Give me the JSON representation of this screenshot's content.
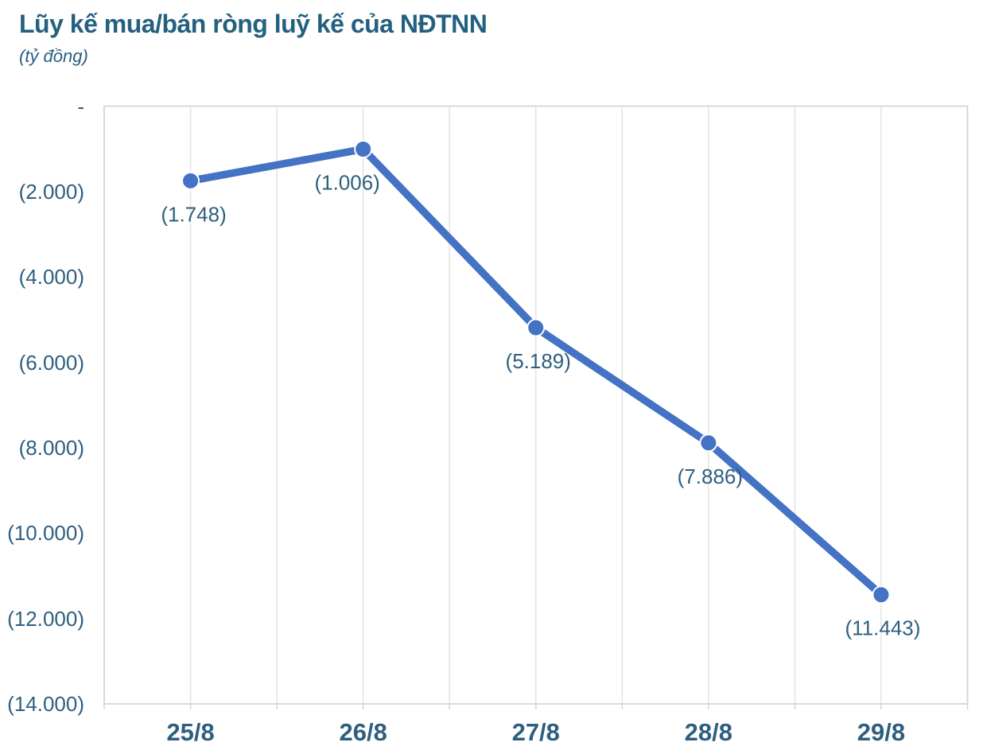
{
  "chart": {
    "title": "Lũy kế mua/bán ròng luỹ kế của NĐTNN",
    "subtitle": "(tỷ đồng)"
  },
  "chart_data": {
    "type": "line",
    "title": "Lũy kế mua/bán ròng luỹ kế của NĐTNN",
    "subtitle_unit": "(tỷ đồng)",
    "categories": [
      "25/8",
      "26/8",
      "27/8",
      "28/8",
      "29/8"
    ],
    "values": [
      -1748,
      -1006,
      -5189,
      -7886,
      -11443
    ],
    "data_labels": [
      "(1.748)",
      "(1.006)",
      "(5.189)",
      "(7.886)",
      "(11.443)"
    ],
    "y_ticks": [
      {
        "value": 0,
        "label": "-"
      },
      {
        "value": -2000,
        "label": "(2.000)"
      },
      {
        "value": -4000,
        "label": "(4.000)"
      },
      {
        "value": -6000,
        "label": "(6.000)"
      },
      {
        "value": -8000,
        "label": "(8.000)"
      },
      {
        "value": -10000,
        "label": "(10.000)"
      },
      {
        "value": -12000,
        "label": "(12.000)"
      },
      {
        "value": -14000,
        "label": "(14.000)"
      }
    ],
    "ylim": [
      -14000,
      0
    ],
    "xlabel": "",
    "ylabel": "tỷ đồng",
    "legend": "none",
    "grid": "vertical-only",
    "colors": {
      "line": "#4472C4",
      "marker": "#4472C4",
      "marker_edge": "#ffffff",
      "title_text": "#24607F",
      "axis_text": "#2E5F7F",
      "label_text": "#2E5F7F",
      "gridline": "#E3E3E3",
      "plot_border": "#D6D6D6",
      "background": "#ffffff"
    }
  }
}
